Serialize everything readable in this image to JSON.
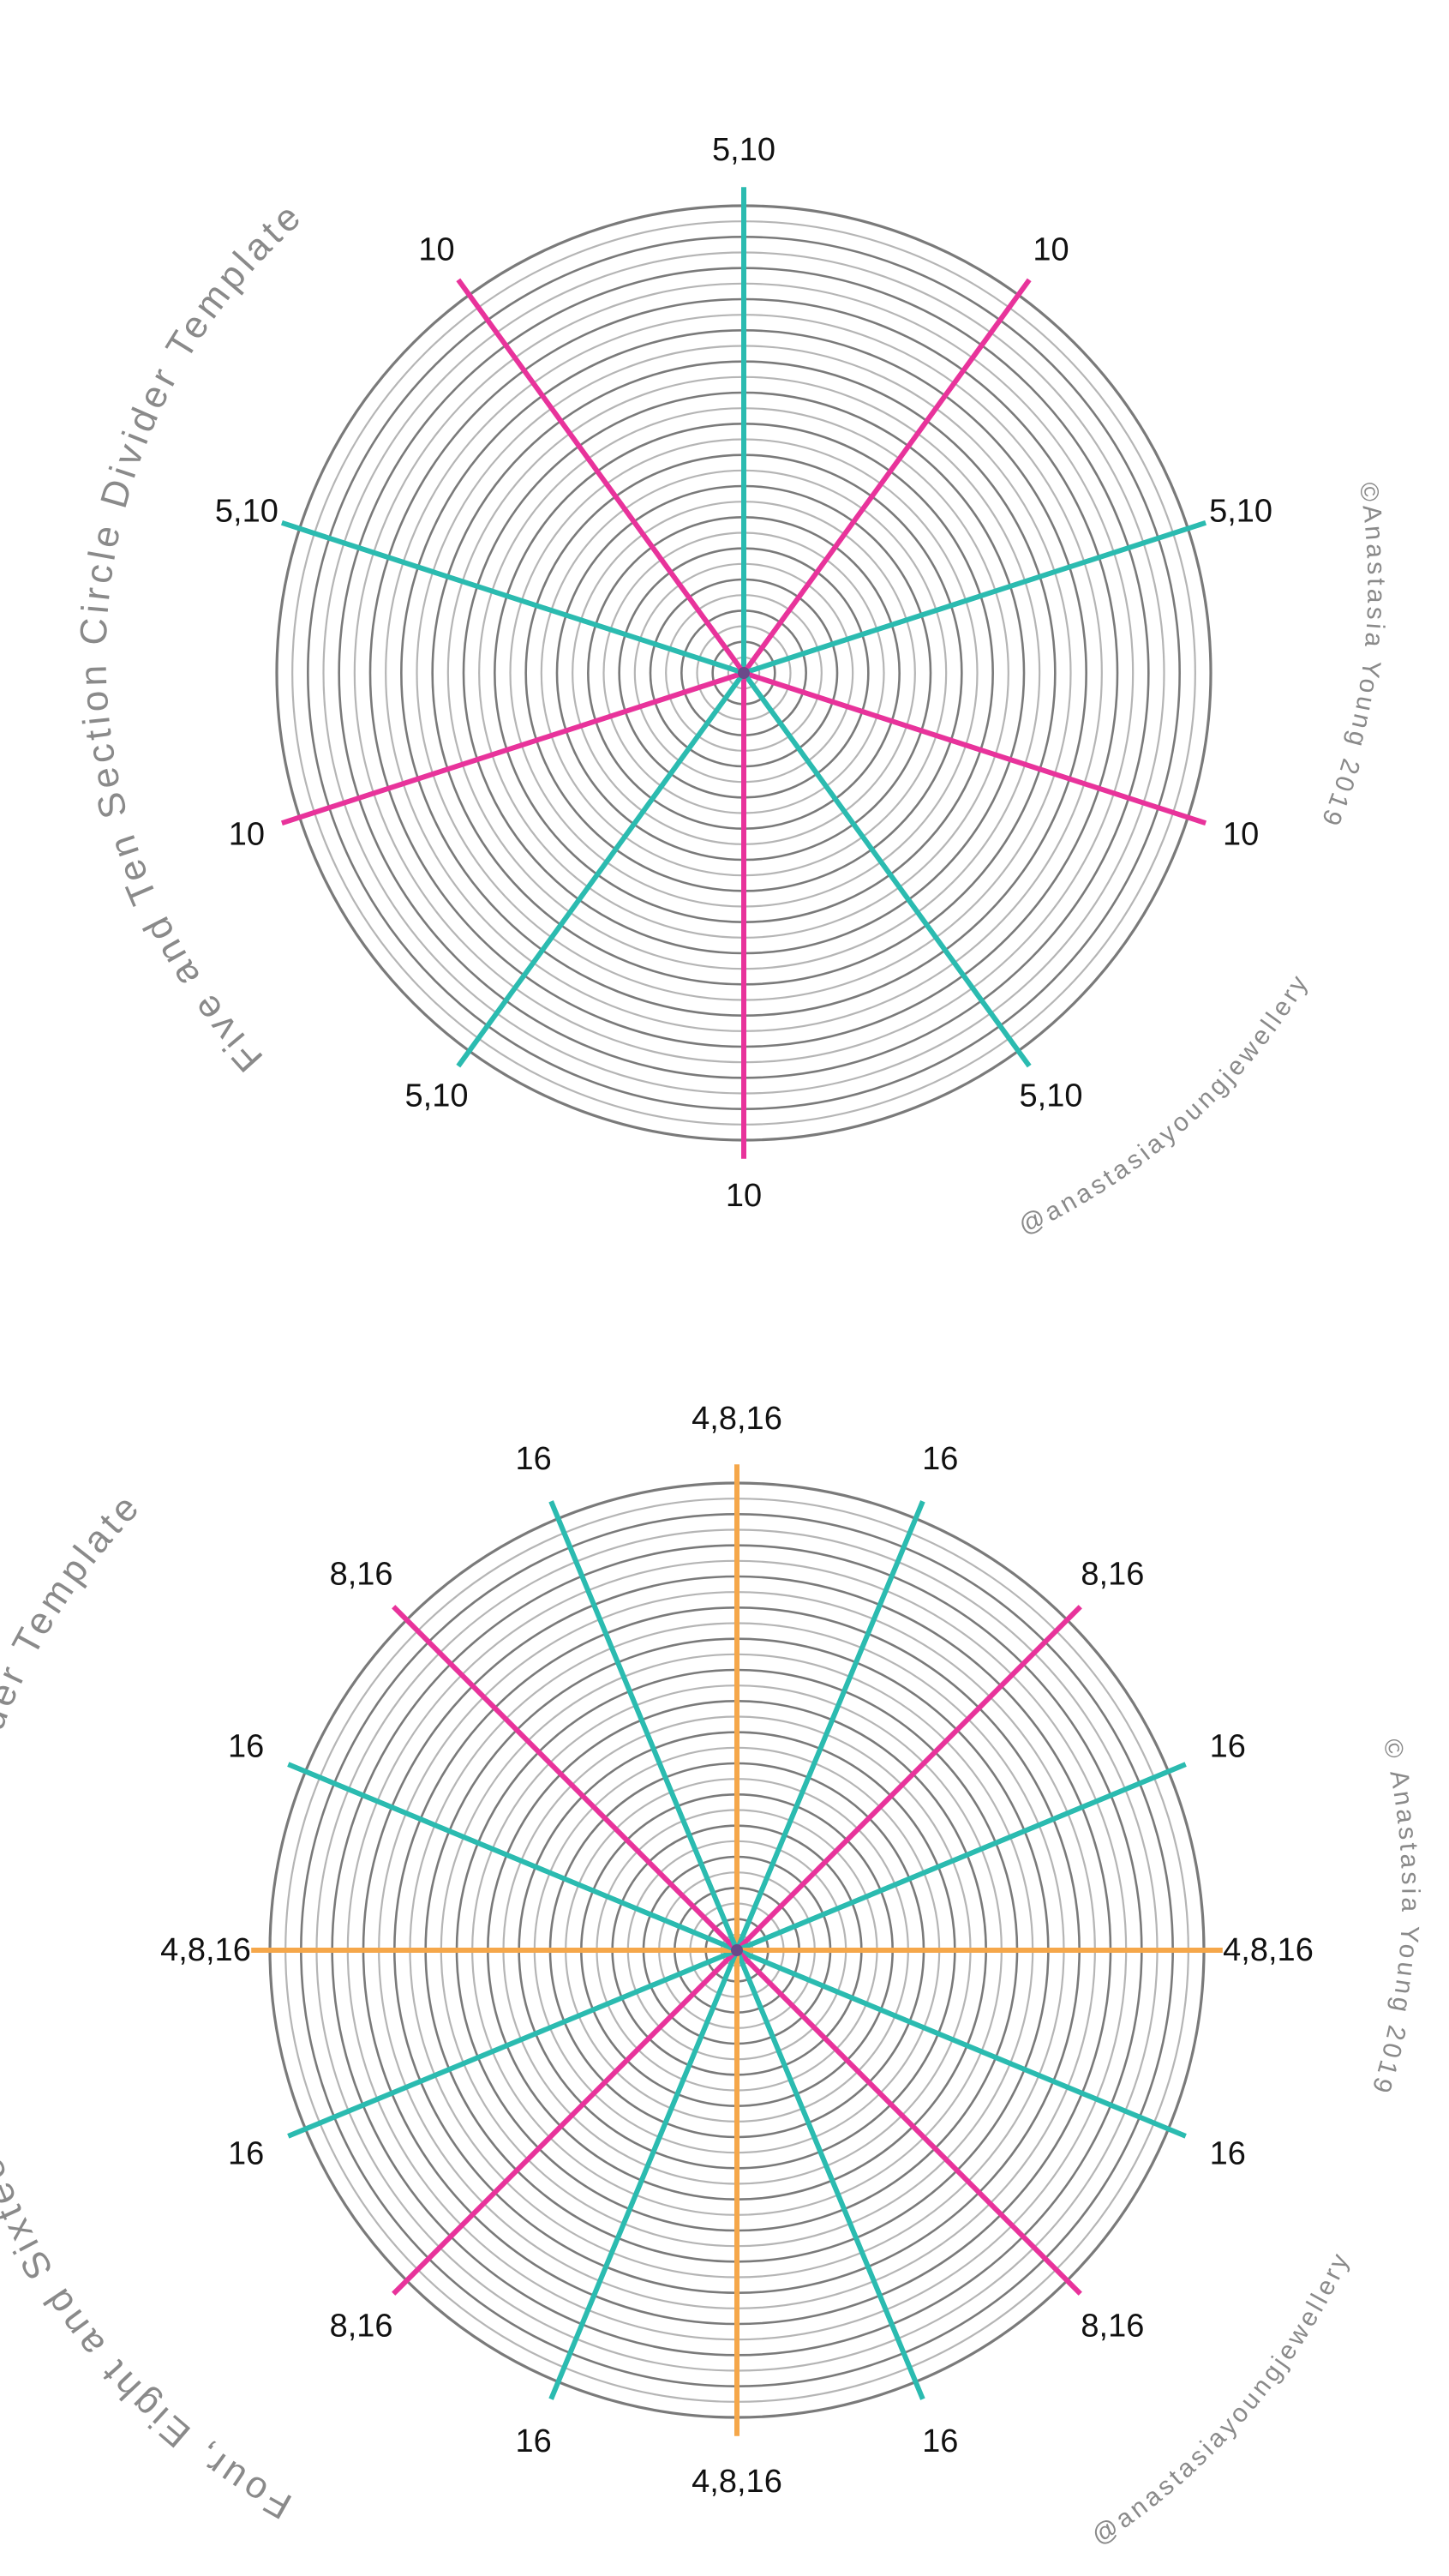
{
  "templates": [
    {
      "title": "Five and Ten Section Circle Divider Template",
      "copyright": "©Anastasia Young 2019",
      "handle": "@anastasiayoungjewellery",
      "spokes": [
        {
          "angle": 0,
          "label": "5,10",
          "color": "#2bbbb0"
        },
        {
          "angle": 36,
          "label": "10",
          "color": "#e8339b"
        },
        {
          "angle": 72,
          "label": "5,10",
          "color": "#2bbbb0"
        },
        {
          "angle": 108,
          "label": "10",
          "color": "#e8339b"
        },
        {
          "angle": 144,
          "label": "5,10",
          "color": "#2bbbb0"
        },
        {
          "angle": 180,
          "label": "10",
          "color": "#e8339b"
        },
        {
          "angle": 216,
          "label": "5,10",
          "color": "#2bbbb0"
        },
        {
          "angle": 252,
          "label": "10",
          "color": "#e8339b"
        },
        {
          "angle": 288,
          "label": "5,10",
          "color": "#2bbbb0"
        },
        {
          "angle": 324,
          "label": "10",
          "color": "#e8339b"
        }
      ]
    },
    {
      "title": "Four, Eight and Sixteen Section Circle Divider Template",
      "copyright": "© Anastasia Young 2019",
      "handle": "@anastasiayoungjewellery",
      "spokes": [
        {
          "angle": 0,
          "label": "4,8,16",
          "color": "#f5a74a"
        },
        {
          "angle": 22.5,
          "label": "16",
          "color": "#2bbbb0"
        },
        {
          "angle": 45,
          "label": "8,16",
          "color": "#e8339b"
        },
        {
          "angle": 67.5,
          "label": "16",
          "color": "#2bbbb0"
        },
        {
          "angle": 90,
          "label": "4,8,16",
          "color": "#f5a74a"
        },
        {
          "angle": 112.5,
          "label": "16",
          "color": "#2bbbb0"
        },
        {
          "angle": 135,
          "label": "8,16",
          "color": "#e8339b"
        },
        {
          "angle": 157.5,
          "label": "16",
          "color": "#2bbbb0"
        },
        {
          "angle": 180,
          "label": "4,8,16",
          "color": "#f5a74a"
        },
        {
          "angle": 202.5,
          "label": "16",
          "color": "#2bbbb0"
        },
        {
          "angle": 225,
          "label": "8,16",
          "color": "#e8339b"
        },
        {
          "angle": 247.5,
          "label": "16",
          "color": "#2bbbb0"
        },
        {
          "angle": 270,
          "label": "4,8,16",
          "color": "#f5a74a"
        },
        {
          "angle": 292.5,
          "label": "16",
          "color": "#2bbbb0"
        },
        {
          "angle": 315,
          "label": "8,16",
          "color": "#e8339b"
        },
        {
          "angle": 337.5,
          "label": "16",
          "color": "#2bbbb0"
        }
      ]
    }
  ],
  "colors": {
    "ring_dark": "#7a7a7a",
    "ring_light": "#b5b5b5",
    "teal": "#2bbbb0",
    "magenta": "#e8339b",
    "orange": "#f5a74a",
    "center_dot": "#6a4a8a"
  }
}
